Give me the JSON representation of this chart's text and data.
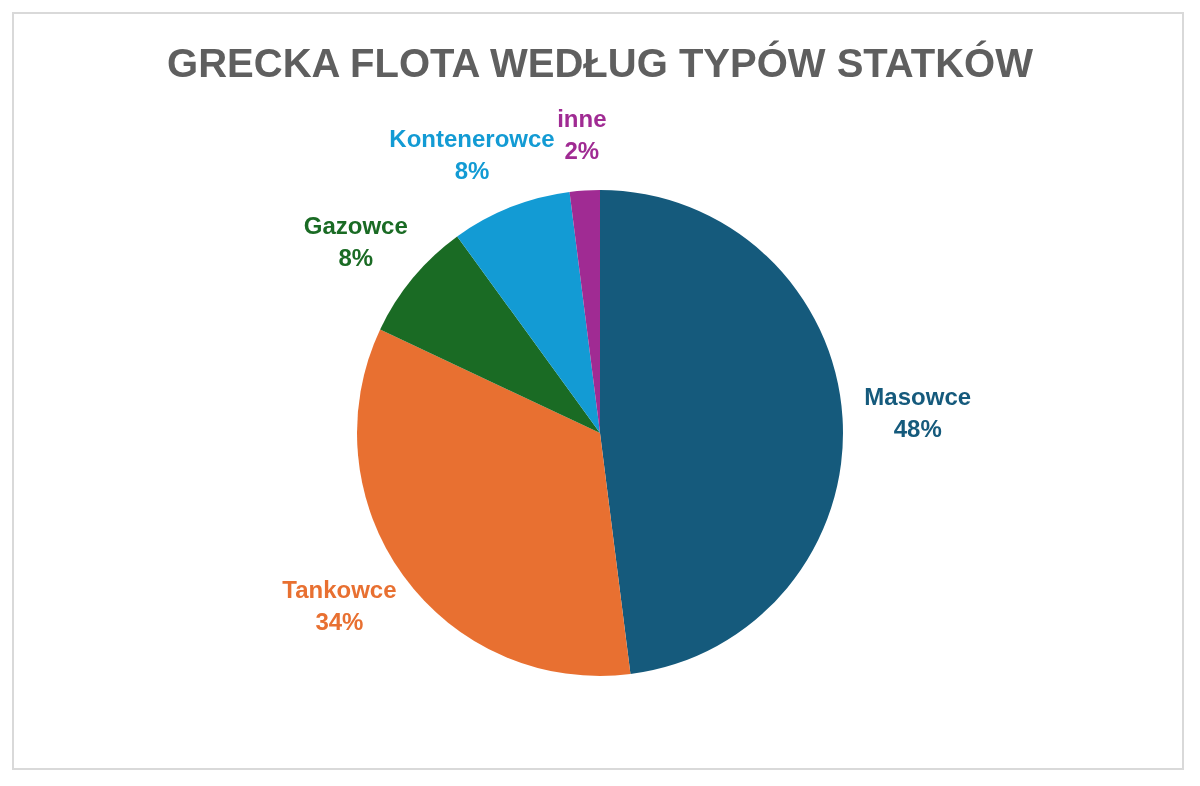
{
  "chart_data": {
    "type": "pie",
    "title": "GRECKA FLOTA WEDŁUG TYPÓW STATKÓW",
    "categories": [
      "Masowce",
      "Tankowce",
      "Gazowce",
      "Kontenerowce",
      "inne"
    ],
    "values": [
      48,
      34,
      8,
      8,
      2
    ],
    "colors": [
      "#155a7c",
      "#e87031",
      "#1a6b24",
      "#139bd4",
      "#a02b93"
    ],
    "value_labels": [
      "48%",
      "34%",
      "8%",
      "8%",
      "2%"
    ],
    "legend": false
  }
}
